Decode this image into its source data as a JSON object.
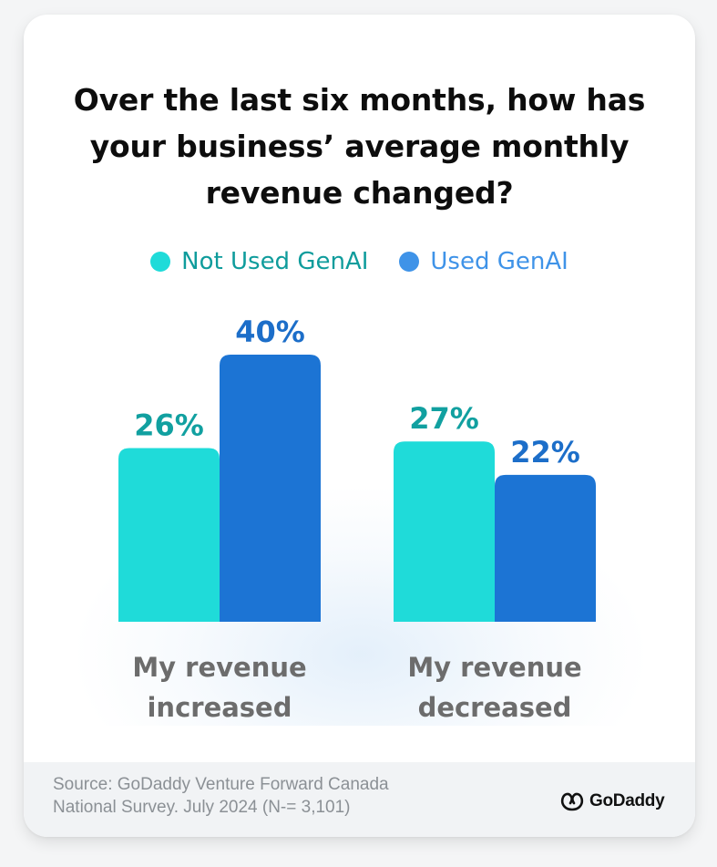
{
  "title_lines": [
    "Over the last six months, how has",
    "your business’ average monthly",
    "revenue changed?"
  ],
  "legend": [
    {
      "label": "Not Used GenAI",
      "color": "#1fdbd9",
      "text_color": "#0f9c9c"
    },
    {
      "label": "Used GenAI",
      "color": "#3f93e8",
      "text_color": "#3f93e8"
    }
  ],
  "chart_data": {
    "type": "bar",
    "categories": [
      [
        "My revenue",
        "increased"
      ],
      [
        "My revenue",
        "decreased"
      ]
    ],
    "series": [
      {
        "name": "Not Used GenAI",
        "values": [
          26,
          27
        ],
        "labels": [
          "26%",
          "27%"
        ],
        "color": "#1fdbd9",
        "label_color": "#11a0a0"
      },
      {
        "name": "Used GenAI",
        "values": [
          40,
          22
        ],
        "labels": [
          "40%",
          "22%"
        ],
        "color": "#1c74d4",
        "label_color": "#1c6ec9"
      }
    ],
    "unit": "%",
    "ylim": [
      0,
      40
    ],
    "grid": false,
    "legend_position": "top-center"
  },
  "footer": {
    "source_lines": [
      "Source: GoDaddy Venture Forward Canada",
      "National Survey. July 2024 (N-= 3,101)"
    ],
    "logo_text": "GoDaddy"
  }
}
